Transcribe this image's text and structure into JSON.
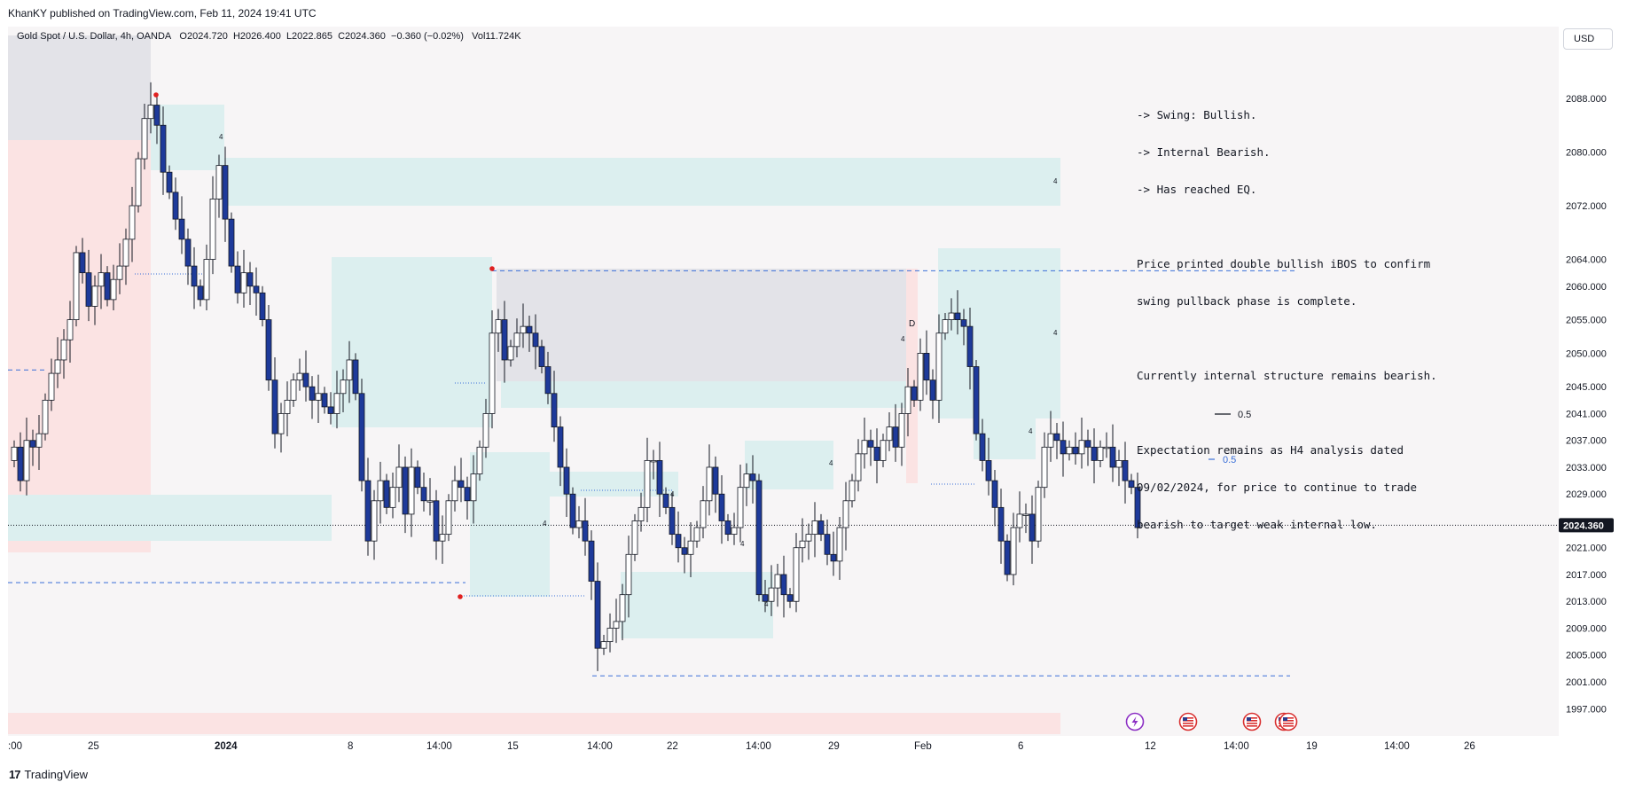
{
  "header": {
    "published_line": "KhanKY published on TradingView.com, Feb 11, 2024 19:41 UTC",
    "symbol": "Gold Spot / U.S. Dollar, 4h, OANDA",
    "open": "O2024.720",
    "high": "H2026.400",
    "low": "L2022.865",
    "close": "C2024.360",
    "change": "−0.360 (−0.02%)",
    "volume": "Vol11.724K",
    "currency": "USD"
  },
  "note_lines": [
    "-> Swing: Bullish.",
    "-> Internal Bearish.",
    "-> Has reached EQ.",
    "",
    "Price printed double bullish iBOS to confirm",
    "swing pullback phase is complete.",
    "",
    "Currently internal structure remains bearish.",
    "",
    "Expectation remains as H4 analysis dated",
    "09/02/2024, for price to continue to trade",
    "bearish to target weak internal low."
  ],
  "footer": {
    "brand": "TradingView",
    "mark": "17"
  },
  "colors": {
    "bull_candle": "#ffffff",
    "bear_candle": "#1e3a9a",
    "wick": "#131722",
    "zone_teal": "#dcefef",
    "zone_pink": "#fbe3e3",
    "zone_grey": "#e3e3e8",
    "dashed_blue": "#3a6fd8",
    "price_label_bg": "#131722"
  },
  "chart_data": {
    "type": "candlestick",
    "symbol": "Gold Spot / U.S. Dollar",
    "interval": "4h",
    "ylim": [
      1994,
      2094
    ],
    "y_ticks": [
      "2088.000",
      "2080.000",
      "2072.000",
      "2064.000",
      "2060.000",
      "2055.000",
      "2050.000",
      "2045.000",
      "2041.000",
      "2037.000",
      "2033.000",
      "2029.000",
      "2021.000",
      "2017.000",
      "2013.000",
      "2009.000",
      "2005.000",
      "2001.000",
      "1997.000"
    ],
    "x_ticks": [
      ":00",
      "25",
      "2024",
      "8",
      "14:00",
      "15",
      "14:00",
      "22",
      "14:00",
      "29",
      "Feb",
      "6",
      "12",
      "14:00",
      "19",
      "14:00",
      "26"
    ],
    "last_price": "2024.360",
    "labels": [
      "0.5",
      "0.5",
      "D",
      "4"
    ],
    "event_icons": [
      "lightning-icon",
      "us-flag-icon",
      "us-flag-icon",
      "us-flag-icon",
      "us-flag-icon"
    ]
  }
}
